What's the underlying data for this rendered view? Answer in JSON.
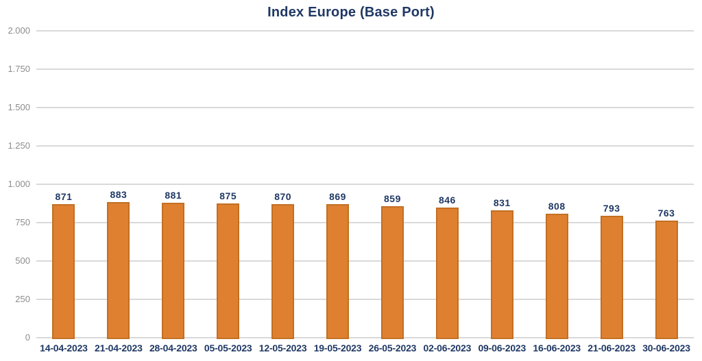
{
  "chart_data": {
    "type": "bar",
    "title": "Index Europe (Base Port)",
    "categories": [
      "14-04-2023",
      "21-04-2023",
      "28-04-2023",
      "05-05-2023",
      "12-05-2023",
      "19-05-2023",
      "26-05-2023",
      "02-06-2023",
      "09-06-2023",
      "16-06-2023",
      "21-06-2023",
      "30-06-2023"
    ],
    "values": [
      871,
      883,
      881,
      875,
      870,
      869,
      859,
      846,
      831,
      808,
      793,
      763
    ],
    "xlabel": "",
    "ylabel": "",
    "ylim": [
      0,
      2000
    ],
    "y_tick_step": 250,
    "y_tick_labels": [
      "0",
      "250",
      "500",
      "750",
      "1.000",
      "1.250",
      "1.500",
      "1.750",
      "2.000"
    ],
    "data_labels_visible": true,
    "grid": "horizontal",
    "legend": "none",
    "colors": {
      "background": "#FFFFFF",
      "bar_fill": "#DF8031",
      "bar_border": "#C26F22",
      "title_text": "#1F3864",
      "data_label_text": "#1F3864",
      "x_tick_text": "#1F3864",
      "y_tick_text": "#8C8C8C",
      "gridline": "#D9D9D9"
    }
  }
}
